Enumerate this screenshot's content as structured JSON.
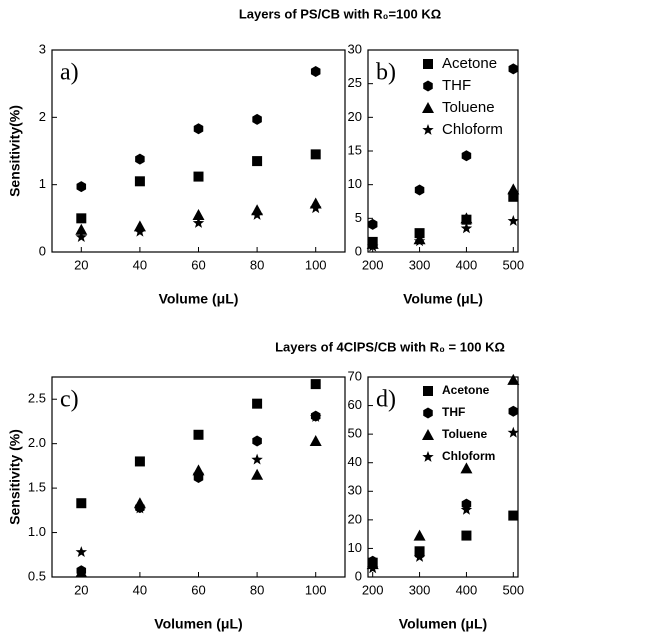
{
  "figure_titles": [
    "Layers of  PS/CB with R₀=100 KΩ",
    "Layers of 4ClPS/CB with R₀ = 100 KΩ"
  ],
  "chart_data": [
    {
      "type": "scatter",
      "panel_label": "a)",
      "xlabel": "Volume (μL)",
      "ylabel": "Sensitivity(%)",
      "x": [
        20,
        40,
        60,
        80,
        100
      ],
      "xlim": [
        10,
        110
      ],
      "xticks": [
        20,
        40,
        60,
        80,
        100
      ],
      "ylim": [
        0,
        3
      ],
      "yticks": [
        0,
        1,
        2,
        3
      ],
      "series": [
        {
          "marker": "square",
          "color": "#000000",
          "values": [
            0.5,
            1.05,
            1.12,
            1.35,
            1.45
          ]
        },
        {
          "marker": "hexagon",
          "color": "#000000",
          "values": [
            0.97,
            1.38,
            1.83,
            1.97,
            2.68
          ]
        },
        {
          "marker": "triangle",
          "color": "#000000",
          "values": [
            0.33,
            0.38,
            0.55,
            0.62,
            0.72
          ]
        },
        {
          "marker": "star",
          "color": "#000000",
          "values": [
            0.22,
            0.3,
            0.43,
            0.55,
            0.65
          ]
        }
      ]
    },
    {
      "type": "scatter",
      "panel_label": "b)",
      "xlabel": "Volume (μL)",
      "legend": "upper left",
      "x": [
        200,
        300,
        400,
        500
      ],
      "xlim": [
        190,
        510
      ],
      "xticks": [
        200,
        300,
        400,
        500
      ],
      "ylim": [
        0,
        30
      ],
      "yticks": [
        0,
        5,
        10,
        15,
        20,
        25,
        30
      ],
      "series": [
        {
          "name": "Acetone",
          "marker": "square",
          "color": "#000000",
          "values": [
            1.5,
            2.8,
            4.8,
            8.2
          ]
        },
        {
          "name": "THF",
          "marker": "hexagon",
          "color": "#000000",
          "values": [
            4.1,
            9.2,
            14.3,
            27.2
          ]
        },
        {
          "name": "Toluene",
          "marker": "triangle",
          "color": "#000000",
          "values": [
            1.2,
            1.9,
            5.0,
            9.3
          ]
        },
        {
          "name": "Chloform",
          "marker": "star",
          "color": "#000000",
          "values": [
            0.8,
            1.6,
            3.5,
            4.6
          ]
        }
      ]
    },
    {
      "type": "scatter",
      "panel_label": "c)",
      "xlabel": "Volumen (μL)",
      "ylabel": "Sensitivity (%)",
      "x": [
        20,
        40,
        60,
        80,
        100
      ],
      "xlim": [
        10,
        110
      ],
      "xticks": [
        20,
        40,
        60,
        80,
        100
      ],
      "ylim": [
        0.5,
        2.75
      ],
      "yticks": [
        0.5,
        {
          "value": 1,
          "label": "1.0"
        },
        1.5,
        {
          "value": 2,
          "label": "2.0"
        },
        2.5
      ],
      "series": [
        {
          "marker": "square",
          "color": "#000000",
          "values": [
            1.33,
            1.8,
            2.1,
            2.45,
            2.67
          ]
        },
        {
          "marker": "hexagon",
          "color": "#000000",
          "values": [
            0.57,
            1.28,
            1.62,
            2.03,
            2.31
          ]
        },
        {
          "marker": "triangle",
          "color": "#000000",
          "values": [
            0.55,
            1.33,
            1.7,
            1.65,
            2.03
          ]
        },
        {
          "marker": "star",
          "color": "#000000",
          "values": [
            0.78,
            1.27,
            1.65,
            1.82,
            2.3
          ]
        }
      ]
    },
    {
      "type": "scatter",
      "panel_label": "d)",
      "xlabel": "Volumen (μL)",
      "legend": "upper left",
      "x": [
        200,
        300,
        400,
        500
      ],
      "xlim": [
        190,
        510
      ],
      "xticks": [
        200,
        300,
        400,
        500
      ],
      "ylim": [
        0,
        70
      ],
      "yticks": [
        0,
        10,
        20,
        30,
        40,
        50,
        60,
        70
      ],
      "series": [
        {
          "name": "Acetone",
          "marker": "square",
          "color": "#000000",
          "values": [
            5,
            9,
            14.5,
            21.5
          ]
        },
        {
          "name": "THF",
          "marker": "hexagon",
          "color": "#000000",
          "values": [
            5.5,
            8,
            25.5,
            58
          ]
        },
        {
          "name": "Toluene",
          "marker": "triangle",
          "color": "#000000",
          "values": [
            4.5,
            14.5,
            38,
            69
          ]
        },
        {
          "name": "Chloform",
          "marker": "star",
          "color": "#000000",
          "values": [
            3,
            7,
            23.5,
            50.5
          ]
        }
      ]
    }
  ]
}
